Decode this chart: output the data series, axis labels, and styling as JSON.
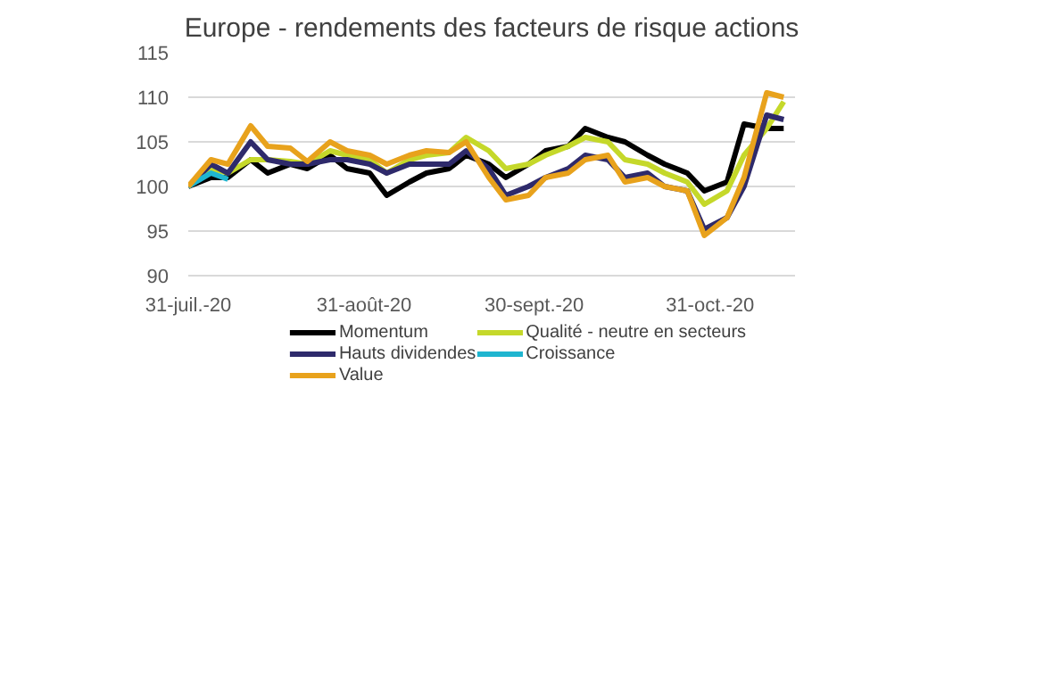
{
  "chart_data": {
    "type": "line",
    "title": "Europe - rendements des facteurs de risque actions",
    "x": [
      "2020-07-31",
      "2020-08-04",
      "2020-08-07",
      "2020-08-11",
      "2020-08-14",
      "2020-08-18",
      "2020-08-21",
      "2020-08-25",
      "2020-08-28",
      "2020-09-01",
      "2020-09-04",
      "2020-09-08",
      "2020-09-11",
      "2020-09-15",
      "2020-09-18",
      "2020-09-22",
      "2020-09-25",
      "2020-09-29",
      "2020-10-02",
      "2020-10-06",
      "2020-10-09",
      "2020-10-13",
      "2020-10-16",
      "2020-10-20",
      "2020-10-23",
      "2020-10-27",
      "2020-10-30",
      "2020-11-03",
      "2020-11-06",
      "2020-11-10",
      "2020-11-13"
    ],
    "series": [
      {
        "name": "Momentum",
        "color": "#000000",
        "values": [
          100,
          101,
          101,
          103,
          101.5,
          102.5,
          102,
          103.5,
          102,
          101.5,
          99,
          100.5,
          101.5,
          102,
          103.5,
          102.5,
          101,
          102.5,
          104,
          104.5,
          106.5,
          105.5,
          105,
          103.5,
          102.5,
          101.5,
          99.5,
          100.5,
          107,
          106.5,
          106.5
        ]
      },
      {
        "name": "Qualité - neutre en secteurs",
        "color": "#c5d82a",
        "values": [
          100,
          102,
          101.5,
          103,
          103,
          102.8,
          102.5,
          104,
          103.5,
          103,
          101.5,
          103,
          103.5,
          103.8,
          105.5,
          104,
          102,
          102.5,
          103.5,
          104.5,
          105.5,
          105,
          103,
          102.5,
          101.5,
          100.5,
          98,
          99.5,
          103.5,
          106.5,
          109.5
        ]
      },
      {
        "name": "Hauts dividendes",
        "color": "#2e2a6b",
        "values": [
          100,
          102.5,
          101.5,
          105,
          103,
          102.5,
          102.5,
          103,
          103,
          102.5,
          101.5,
          102.5,
          102.5,
          102.5,
          104,
          102,
          99,
          100,
          101,
          102,
          103.5,
          103,
          101,
          101.5,
          100,
          99.5,
          95.2,
          96.5,
          100,
          108,
          107.5
        ]
      },
      {
        "name": "Croissance",
        "color": "#1fb5d0",
        "values": [
          100,
          101.5,
          100.8,
          null,
          null,
          null,
          null,
          null,
          null,
          null,
          null,
          null,
          null,
          null,
          null,
          null,
          null,
          null,
          null,
          null,
          null,
          null,
          null,
          null,
          null,
          null,
          null,
          null,
          null,
          null,
          null
        ]
      },
      {
        "name": "Value",
        "color": "#e8a21c",
        "values": [
          100,
          103,
          102.5,
          106.8,
          104.5,
          104.3,
          102.8,
          105,
          104,
          103.5,
          102.5,
          103.5,
          104,
          103.8,
          105,
          101,
          98.5,
          99,
          101,
          101.5,
          103,
          103.5,
          100.5,
          101,
          100,
          99.5,
          94.5,
          96.5,
          101,
          110.5,
          110
        ]
      }
    ],
    "xlim": [
      "2020-07-31",
      "2020-11-15"
    ],
    "xticks": [
      {
        "value": "2020-07-31",
        "label": "31-juil.-20"
      },
      {
        "value": "2020-08-31",
        "label": "31-août-20"
      },
      {
        "value": "2020-09-30",
        "label": "30-sept.-20"
      },
      {
        "value": "2020-10-31",
        "label": "31-oct.-20"
      }
    ],
    "ylim": [
      90,
      115
    ],
    "yticks": [
      90,
      95,
      100,
      105,
      110,
      115
    ],
    "grid": "y",
    "legend": "bottom",
    "marker": "none",
    "line_style": "solid"
  }
}
